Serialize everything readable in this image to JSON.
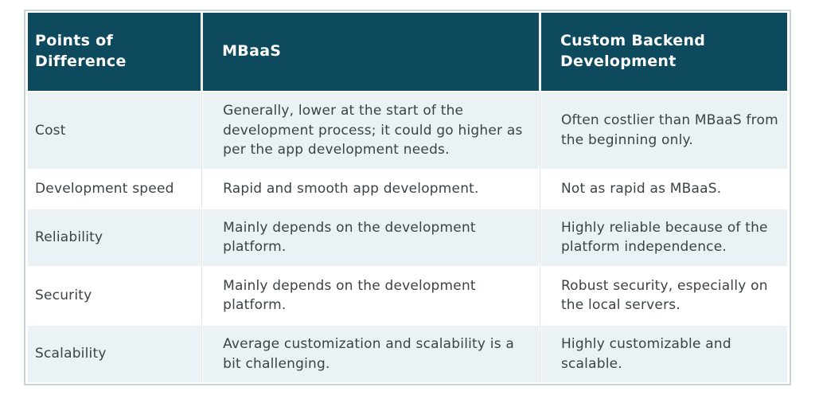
{
  "table": {
    "headers": [
      "Points of Difference",
      "MBaaS",
      "Custom Backend Development"
    ],
    "rows": [
      {
        "label": "Cost",
        "mbaas": "Generally, lower at the start of the development process; it could go higher as per the app development needs.",
        "custom": "Often costlier than MBaaS from the beginning only."
      },
      {
        "label": "Development speed",
        "mbaas": "Rapid and smooth app development.",
        "custom": "Not as rapid as MBaaS."
      },
      {
        "label": "Reliability",
        "mbaas": "Mainly depends on the development platform.",
        "custom": "Highly reliable because of the platform independence."
      },
      {
        "label": "Security",
        "mbaas": "Mainly depends on the development platform.",
        "custom": "Robust security, especially on the local servers."
      },
      {
        "label": "Scalability",
        "mbaas": "Average customization and scalability is a bit challenging.",
        "custom": "Highly customizable and scalable."
      }
    ],
    "colors": {
      "header_bg": "#0e4a5d",
      "row_alt_bg": "#eaf2f6",
      "row_bg": "#ffffff",
      "header_text": "#ffffff",
      "body_text": "#3c4245",
      "outer_border": "#c9d3d8"
    }
  }
}
